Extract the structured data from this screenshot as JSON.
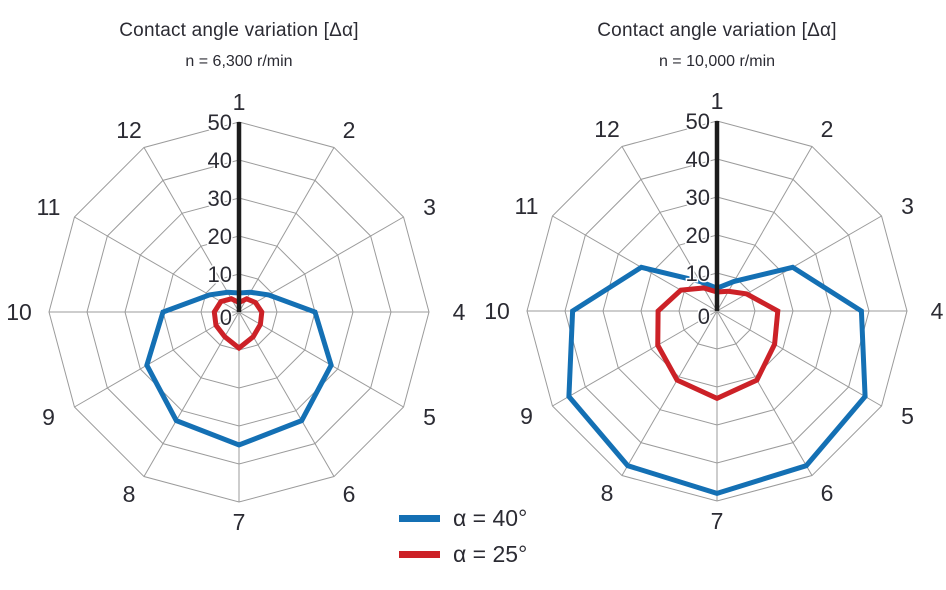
{
  "page": {
    "background": "#ffffff"
  },
  "styles": {
    "grid_color": "#9b9b9b",
    "axis_color": "#1c1c1c",
    "label_color": "#2b2b33",
    "blue": "#1470b4",
    "red": "#cc2127"
  },
  "legend": {
    "items": [
      {
        "label": "α = 40°",
        "color": "#1470b4"
      },
      {
        "label": "α = 25°",
        "color": "#cc2127"
      }
    ]
  },
  "chart_data": [
    {
      "type": "radar",
      "title": "Contact angle variation [Δα]",
      "subtitle": "n = 6,300 r/min",
      "categories": [
        "1",
        "2",
        "3",
        "4",
        "5",
        "6",
        "7",
        "8",
        "9",
        "10",
        "11",
        "12"
      ],
      "radial_ticks": [
        0,
        10,
        20,
        30,
        40,
        50
      ],
      "rlim": [
        0,
        50
      ],
      "grid": true,
      "legend_position": "bottom-center-shared",
      "series": [
        {
          "name": "α = 40°",
          "color": "#1470b4",
          "values": [
            5,
            6,
            9,
            20,
            28,
            33,
            35,
            33,
            28,
            20,
            9,
            6
          ]
        },
        {
          "name": "α = 25°",
          "color": "#cc2127",
          "values": [
            2.5,
            4,
            5,
            6,
            6.5,
            7.5,
            9.5,
            7.5,
            7,
            6.5,
            5.5,
            4
          ]
        }
      ]
    },
    {
      "type": "radar",
      "title": "Contact angle variation [Δα]",
      "subtitle": "n = 10,000 r/min",
      "categories": [
        "1",
        "2",
        "3",
        "4",
        "5",
        "6",
        "7",
        "8",
        "9",
        "10",
        "11",
        "12"
      ],
      "radial_ticks": [
        0,
        10,
        20,
        30,
        40,
        50
      ],
      "rlim": [
        0,
        50
      ],
      "grid": true,
      "legend_position": "bottom-center-shared",
      "series": [
        {
          "name": "α = 40°",
          "color": "#1470b4",
          "values": [
            6,
            9,
            23,
            38,
            45,
            47,
            48,
            47,
            45,
            38,
            23,
            9
          ]
        },
        {
          "name": "α = 25°",
          "color": "#cc2127",
          "values": [
            5,
            6,
            9,
            16,
            17.5,
            21,
            23,
            21,
            18,
            15.5,
            11,
            7
          ]
        }
      ]
    }
  ]
}
